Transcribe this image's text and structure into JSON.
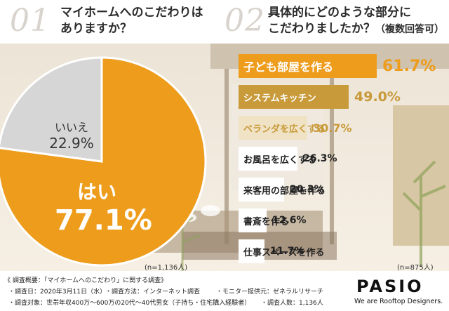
{
  "questions": {
    "q1_number": "01",
    "q1_line1": "マイホームへのこだわりは",
    "q1_line2": "ありますか？",
    "q2_number": "02",
    "q2_line1": "具体的にどのような部分に",
    "q2_line2": "こだわりましたか？",
    "q2_suffix": "（複数回答可）"
  },
  "pie_notes": {
    "n": "(n=1,136人)"
  },
  "bar_notes": {
    "n": "(n=875人)"
  },
  "footer": {
    "title": "《 調査概要：「マイホームへのこだわり」に関する調査》",
    "date": "・調査日：2020年3月11日（水）",
    "method": "・調査方法：インターネット調査",
    "provider": "・モニター提供元：ゼネラルリサーチ",
    "target": "・調査対象：世帯年収400万〜600万の20代〜40代男女（子持ち・住宅購入経験者）",
    "count": "・調査人数：1,136人"
  },
  "brand": {
    "logo": "PASIO",
    "tagline": "We are Rooftop Designers."
  },
  "colors": {
    "primary": "#ee9c1c",
    "secondary": "#c89a3a",
    "muted": "#ffffff",
    "grey": "#d6d6d6"
  },
  "chart_data": [
    {
      "type": "pie",
      "categories": [
        "はい",
        "いいえ"
      ],
      "values": [
        77.1,
        22.9
      ],
      "value_labels": [
        "77.1%",
        "22.9%"
      ],
      "colors": [
        "#ee9c1c",
        "#d6d6d6"
      ]
    },
    {
      "type": "bar",
      "orientation": "horizontal",
      "categories": [
        "子ども部屋を作る",
        "システムキッチン",
        "ベランダを広くする",
        "お風呂を広くする",
        "来客用の部屋を作る",
        "書斎を作る",
        "仕事スペースを作る"
      ],
      "values": [
        61.7,
        49.0,
        30.7,
        26.3,
        20.3,
        12.6,
        11.7
      ],
      "value_labels": [
        "61.7%",
        "49.0%",
        "30.7%",
        "26.3%",
        "20.3%",
        "12.6%",
        "11.7%"
      ],
      "xlim": [
        0,
        100
      ]
    }
  ]
}
